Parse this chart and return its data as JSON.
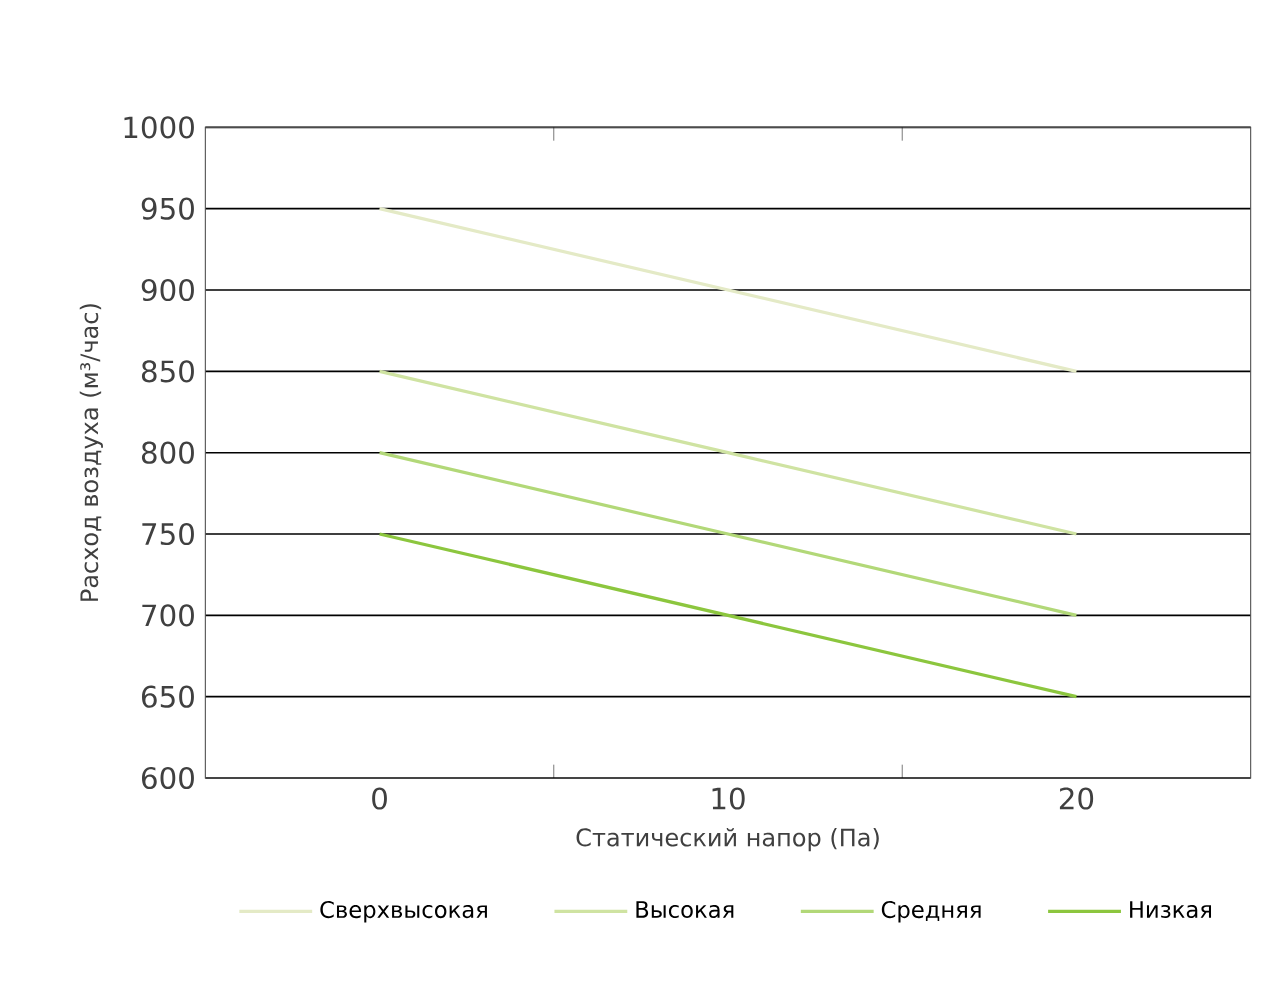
{
  "chart_data": {
    "type": "line",
    "xlabel": "Статический напор (Па)",
    "ylabel": "Расход воздуха (м³/час)",
    "x": [
      0,
      10,
      20
    ],
    "series": [
      {
        "name": "Сверхвысокая",
        "color": "#e4eac6",
        "values": [
          950,
          900,
          850
        ]
      },
      {
        "name": "Высокая",
        "color": "#cfe3a2",
        "values": [
          850,
          800,
          750
        ]
      },
      {
        "name": "Средняя",
        "color": "#b2d878",
        "values": [
          800,
          750,
          700
        ]
      },
      {
        "name": "Низкая",
        "color": "#8cc63e",
        "values": [
          750,
          700,
          650
        ]
      }
    ],
    "xlim": [
      -5,
      25
    ],
    "xticks": [
      {
        "value": 5,
        "label": null
      },
      0,
      10,
      {
        "value": 15,
        "label": null
      },
      20
    ],
    "ylim": [
      600,
      1000
    ],
    "yticks": [
      600,
      650,
      700,
      750,
      800,
      850,
      900,
      950,
      1000
    ],
    "grid": "y",
    "legend": "bottom",
    "marker": "none",
    "line_style": "solid"
  }
}
